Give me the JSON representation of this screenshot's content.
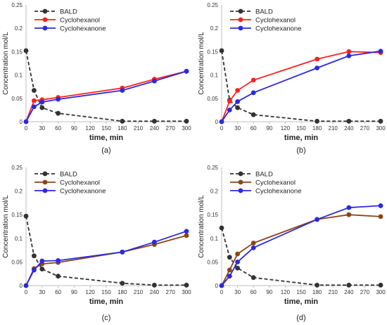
{
  "chart_data": [
    {
      "type": "line",
      "panel_label": "(a)",
      "xlabel": "time, min",
      "ylabel": "Concentration mol/L",
      "xlim": [
        0,
        300
      ],
      "ylim": [
        0,
        0.25
      ],
      "x_ticks": [
        0,
        30,
        60,
        90,
        120,
        150,
        180,
        210,
        240,
        270,
        300
      ],
      "y_ticks": [
        0,
        0.05,
        0.1,
        0.15,
        0.2,
        0.25
      ],
      "y_tick_labels": [
        "0",
        "0.05",
        "0.1",
        "0.15",
        "0.2",
        "0.25"
      ],
      "grid": false,
      "legend_position": "top-left",
      "series": [
        {
          "name": "BALD",
          "color": "#333333",
          "style": "dashed",
          "x": [
            0,
            15,
            30,
            60,
            180,
            240,
            300
          ],
          "y": [
            0.152,
            0.067,
            0.03,
            0.018,
            0.001,
            0.001,
            0.001
          ]
        },
        {
          "name": "Cyclohexanol",
          "color": "#ff2020",
          "style": "solid",
          "x": [
            0,
            15,
            30,
            60,
            180,
            240,
            300
          ],
          "y": [
            0,
            0.045,
            0.047,
            0.052,
            0.072,
            0.091,
            0.108
          ]
        },
        {
          "name": "Cyclohexanone",
          "color": "#2a2ae0",
          "style": "solid",
          "x": [
            0,
            15,
            30,
            60,
            180,
            240,
            300
          ],
          "y": [
            0,
            0.032,
            0.042,
            0.048,
            0.067,
            0.087,
            0.108
          ]
        }
      ]
    },
    {
      "type": "line",
      "panel_label": "(b)",
      "xlabel": "time, min",
      "ylabel": "Concentration mol/L",
      "xlim": [
        0,
        300
      ],
      "ylim": [
        0,
        0.25
      ],
      "x_ticks": [
        0,
        30,
        60,
        90,
        120,
        150,
        180,
        210,
        240,
        270,
        300
      ],
      "y_ticks": [
        0,
        0.05,
        0.1,
        0.15,
        0.2,
        0.25
      ],
      "y_tick_labels": [
        "0",
        "0.05",
        "0.1",
        "0.15",
        "0.2",
        "0.25"
      ],
      "grid": false,
      "legend_position": "top-left",
      "series": [
        {
          "name": "BALD",
          "color": "#333333",
          "style": "dashed",
          "x": [
            0,
            15,
            30,
            60,
            180,
            240,
            300
          ],
          "y": [
            0.152,
            0.046,
            0.03,
            0.015,
            0.001,
            0.001,
            0.001
          ]
        },
        {
          "name": "Cyclohexanol",
          "color": "#ff2020",
          "style": "solid",
          "x": [
            0,
            15,
            30,
            60,
            180,
            240,
            300
          ],
          "y": [
            0,
            0.044,
            0.067,
            0.089,
            0.134,
            0.15,
            0.148
          ]
        },
        {
          "name": "Cyclohexanone",
          "color": "#2a2ae0",
          "style": "solid",
          "x": [
            0,
            15,
            30,
            60,
            180,
            240,
            300
          ],
          "y": [
            0,
            0.025,
            0.043,
            0.062,
            0.115,
            0.141,
            0.151
          ]
        }
      ]
    },
    {
      "type": "line",
      "panel_label": "(c)",
      "xlabel": "time, min",
      "ylabel": "Concentration mol/L",
      "xlim": [
        0,
        300
      ],
      "ylim": [
        0,
        0.25
      ],
      "x_ticks": [
        0,
        30,
        60,
        90,
        120,
        150,
        180,
        210,
        240,
        270,
        300
      ],
      "y_ticks": [
        0,
        0.05,
        0.1,
        0.15,
        0.2,
        0.25
      ],
      "y_tick_labels": [
        "0",
        "0.05",
        "0.1",
        "0.15",
        "0.2",
        "0.25"
      ],
      "grid": false,
      "legend_position": "top-left",
      "series": [
        {
          "name": "BALD",
          "color": "#333333",
          "style": "dashed",
          "x": [
            0,
            15,
            30,
            60,
            180,
            240,
            300
          ],
          "y": [
            0.147,
            0.063,
            0.035,
            0.02,
            0.005,
            0.001,
            0.001
          ]
        },
        {
          "name": "Cyclohexanol",
          "color": "#8b4513",
          "style": "solid",
          "x": [
            0,
            15,
            30,
            60,
            180,
            240,
            300
          ],
          "y": [
            0,
            0.036,
            0.046,
            0.049,
            0.071,
            0.087,
            0.106
          ]
        },
        {
          "name": "Cyclohexanone",
          "color": "#2a2ae0",
          "style": "solid",
          "x": [
            0,
            15,
            30,
            60,
            180,
            240,
            300
          ],
          "y": [
            0,
            0.033,
            0.052,
            0.053,
            0.071,
            0.092,
            0.115
          ]
        }
      ]
    },
    {
      "type": "line",
      "panel_label": "(d)",
      "xlabel": "time, min",
      "ylabel": "Concentration mol/L",
      "xlim": [
        0,
        300
      ],
      "ylim": [
        0,
        0.25
      ],
      "x_ticks": [
        0,
        30,
        60,
        90,
        120,
        150,
        180,
        210,
        240,
        270,
        300
      ],
      "y_ticks": [
        0,
        0.05,
        0.1,
        0.15,
        0.2,
        0.25
      ],
      "y_tick_labels": [
        "0",
        "0.05",
        "0.1",
        "0.15",
        "0.2",
        "0.25"
      ],
      "grid": false,
      "legend_position": "top-left",
      "series": [
        {
          "name": "BALD",
          "color": "#333333",
          "style": "dashed",
          "x": [
            0,
            15,
            30,
            60,
            180,
            240,
            300
          ],
          "y": [
            0.122,
            0.06,
            0.037,
            0.017,
            0.001,
            0.001,
            0.001
          ]
        },
        {
          "name": "Cyclohexanol",
          "color": "#8b4513",
          "style": "solid",
          "x": [
            0,
            15,
            30,
            60,
            180,
            240,
            300
          ],
          "y": [
            0,
            0.033,
            0.067,
            0.09,
            0.14,
            0.15,
            0.146
          ]
        },
        {
          "name": "Cyclohexanone",
          "color": "#2a2ae0",
          "style": "solid",
          "x": [
            0,
            15,
            30,
            60,
            180,
            240,
            300
          ],
          "y": [
            0,
            0.02,
            0.05,
            0.08,
            0.14,
            0.165,
            0.169
          ]
        }
      ]
    }
  ]
}
